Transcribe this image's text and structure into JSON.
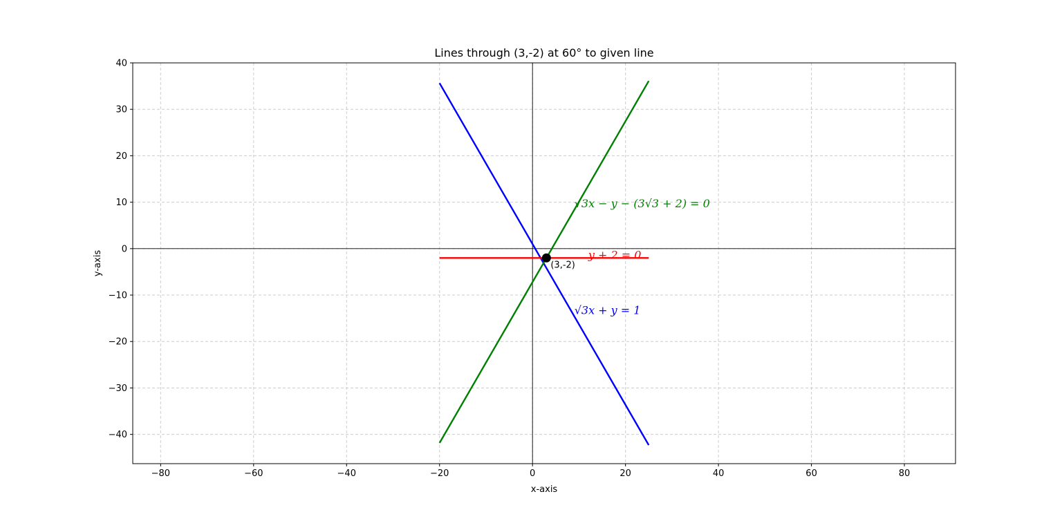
{
  "chart_data": {
    "type": "line",
    "title": "Lines through (3,-2) at 60° to given line",
    "xlabel": "x-axis",
    "ylabel": "y-axis",
    "xlim": [
      -86,
      91
    ],
    "ylim": [
      -46.3,
      40
    ],
    "xticks": [
      -80,
      -60,
      -40,
      -20,
      0,
      20,
      40,
      60,
      80
    ],
    "yticks": [
      -40,
      -30,
      -20,
      -10,
      0,
      10,
      20,
      30,
      40
    ],
    "grid": true,
    "series": [
      {
        "label": "√3x + y = 1",
        "color": "#0000ff",
        "x": [
          -20,
          25
        ],
        "y": [
          35.64,
          -42.3
        ]
      },
      {
        "label": "y + 2 = 0",
        "color": "#ff0000",
        "x": [
          -20,
          25
        ],
        "y": [
          -2,
          -2
        ]
      },
      {
        "label": "√3x − y − (3√3 + 2) = 0",
        "color": "#008000",
        "x": [
          -20,
          25
        ],
        "y": [
          -41.84,
          36.1
        ]
      }
    ],
    "point": {
      "label": "(3,-2)",
      "x": 3,
      "y": -2,
      "color": "#000000"
    },
    "annotations": [
      {
        "text": "√3x − y − (3√3 + 2) = 0",
        "x": 9,
        "y": 9.8,
        "color": "#008000"
      },
      {
        "text": "y + 2 = 0",
        "x": 12,
        "y": -1.3,
        "color": "#ff0000"
      },
      {
        "text": "√3x + y = 1",
        "x": 9,
        "y": -13.2,
        "color": "#0000ff"
      }
    ]
  }
}
